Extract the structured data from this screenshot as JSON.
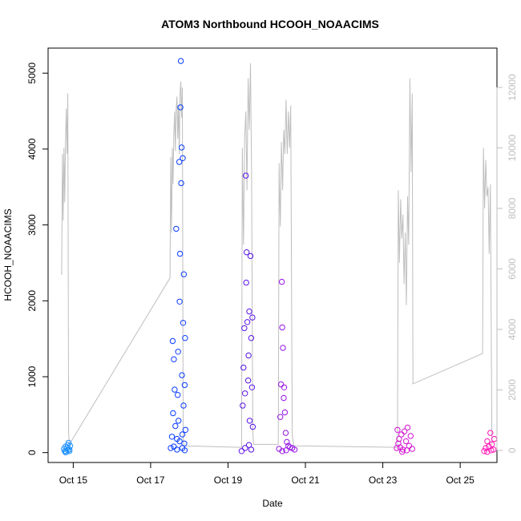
{
  "chart_data": {
    "type": "scatter",
    "title": "ATOM3 Northbound HCOOH_NOAACIMS",
    "xlabel": "Date",
    "ylabel": "HCOOH_NOAACIMS",
    "x_ticks": [
      "Oct 15",
      "Oct 17",
      "Oct 19",
      "Oct 21",
      "Oct 23",
      "Oct 25"
    ],
    "x_tick_days": [
      15,
      17,
      19,
      21,
      23,
      25
    ],
    "xlim": [
      14.35,
      25.95
    ],
    "ylim": [
      -130,
      5330
    ],
    "y_ticks": [
      0,
      1000,
      2000,
      3000,
      4000,
      5000
    ],
    "y2lim": [
      -400,
      13300
    ],
    "y2_ticks": [
      0,
      2000,
      4000,
      6000,
      8000,
      10000,
      12000
    ],
    "grid": false,
    "legend": "none",
    "colors": {
      "altitude_line": "#bebebe",
      "point_palette": [
        "#1e90ff",
        "#0a3cff",
        "#5a14e6",
        "#9614e6",
        "#d214d2",
        "#ff14b4"
      ]
    },
    "series": [
      {
        "role": "points",
        "flights": [
          {
            "day": 14.82,
            "points": [
              [
                14.76,
                50
              ],
              [
                14.78,
                20
              ],
              [
                14.8,
                80
              ],
              [
                14.82,
                10
              ],
              [
                14.84,
                60
              ],
              [
                14.86,
                30
              ],
              [
                14.88,
                130
              ],
              [
                14.9,
                40
              ],
              [
                14.92,
                90
              ],
              [
                14.8,
                5
              ],
              [
                14.86,
                100
              ],
              [
                14.9,
                20
              ]
            ]
          },
          {
            "day": 17.65,
            "points": [
              [
                17.52,
                60
              ],
              [
                17.55,
                210
              ],
              [
                17.57,
                1470
              ],
              [
                17.58,
                520
              ],
              [
                17.6,
                1230
              ],
              [
                17.62,
                830
              ],
              [
                17.64,
                350
              ],
              [
                17.66,
                2950
              ],
              [
                17.68,
                180
              ],
              [
                17.7,
                760
              ],
              [
                17.71,
                1330
              ],
              [
                17.72,
                420
              ],
              [
                17.74,
                3830
              ],
              [
                17.75,
                1990
              ],
              [
                17.76,
                2620
              ],
              [
                17.77,
                4550
              ],
              [
                17.78,
                5160
              ],
              [
                17.79,
                3550
              ],
              [
                17.8,
                4020
              ],
              [
                17.81,
                1020
              ],
              [
                17.82,
                240
              ],
              [
                17.83,
                3880
              ],
              [
                17.84,
                1710
              ],
              [
                17.85,
                620
              ],
              [
                17.86,
                2350
              ],
              [
                17.87,
                120
              ],
              [
                17.88,
                890
              ],
              [
                17.89,
                1510
              ],
              [
                17.9,
                300
              ],
              [
                17.6,
                80
              ],
              [
                17.68,
                40
              ],
              [
                17.75,
                150
              ],
              [
                17.82,
                60
              ],
              [
                17.88,
                30
              ]
            ]
          },
          {
            "day": 19.45,
            "points": [
              [
                19.35,
                20
              ],
              [
                19.38,
                620
              ],
              [
                19.4,
                1120
              ],
              [
                19.42,
                1640
              ],
              [
                19.44,
                780
              ],
              [
                19.46,
                3650
              ],
              [
                19.47,
                2240
              ],
              [
                19.48,
                2640
              ],
              [
                19.5,
                1720
              ],
              [
                19.52,
                950
              ],
              [
                19.53,
                1280
              ],
              [
                19.55,
                1860
              ],
              [
                19.56,
                420
              ],
              [
                19.58,
                2590
              ],
              [
                19.6,
                1510
              ],
              [
                19.62,
                860
              ],
              [
                19.63,
                1780
              ],
              [
                19.64,
                340
              ],
              [
                19.44,
                60
              ],
              [
                19.54,
                100
              ],
              [
                19.6,
                40
              ]
            ]
          },
          {
            "day": 20.5,
            "points": [
              [
                20.32,
                50
              ],
              [
                20.35,
                470
              ],
              [
                20.37,
                900
              ],
              [
                20.39,
                2250
              ],
              [
                20.4,
                1650
              ],
              [
                20.42,
                1380
              ],
              [
                20.44,
                720
              ],
              [
                20.45,
                860
              ],
              [
                20.47,
                530
              ],
              [
                20.49,
                260
              ],
              [
                20.52,
                140
              ],
              [
                20.56,
                90
              ],
              [
                20.6,
                70
              ],
              [
                20.66,
                60
              ],
              [
                20.72,
                40
              ],
              [
                20.4,
                20
              ],
              [
                20.5,
                30
              ]
            ]
          },
          {
            "day": 23.5,
            "points": [
              [
                23.36,
                60
              ],
              [
                23.38,
                300
              ],
              [
                23.4,
                120
              ],
              [
                23.42,
                180
              ],
              [
                23.45,
                70
              ],
              [
                23.48,
                240
              ],
              [
                23.52,
                40
              ],
              [
                23.56,
                280
              ],
              [
                23.6,
                150
              ],
              [
                23.64,
                330
              ],
              [
                23.68,
                90
              ],
              [
                23.72,
                220
              ],
              [
                23.76,
                50
              ],
              [
                23.5,
                10
              ],
              [
                23.62,
                30
              ]
            ]
          },
          {
            "day": 25.75,
            "points": [
              [
                25.62,
                20
              ],
              [
                25.66,
                60
              ],
              [
                25.7,
                150
              ],
              [
                25.74,
                80
              ],
              [
                25.78,
                260
              ],
              [
                25.82,
                110
              ],
              [
                25.86,
                40
              ],
              [
                25.88,
                180
              ],
              [
                25.7,
                10
              ],
              [
                25.8,
                30
              ]
            ]
          }
        ]
      },
      {
        "role": "altitude_line",
        "axis": "right",
        "points": [
          [
            14.7,
            5800
          ],
          [
            14.72,
            9800
          ],
          [
            14.74,
            7600
          ],
          [
            14.76,
            10000
          ],
          [
            14.78,
            8200
          ],
          [
            14.8,
            10200
          ],
          [
            14.82,
            11300
          ],
          [
            14.84,
            9800
          ],
          [
            14.86,
            11800
          ],
          [
            14.88,
            600
          ],
          [
            14.9,
            200
          ],
          [
            17.5,
            5700
          ],
          [
            17.52,
            9700
          ],
          [
            17.54,
            7200
          ],
          [
            17.56,
            10000
          ],
          [
            17.58,
            8800
          ],
          [
            17.6,
            10500
          ],
          [
            17.62,
            11200
          ],
          [
            17.64,
            9900
          ],
          [
            17.66,
            11300
          ],
          [
            17.68,
            11700
          ],
          [
            17.7,
            10300
          ],
          [
            17.72,
            11400
          ],
          [
            17.74,
            9800
          ],
          [
            17.76,
            11800
          ],
          [
            17.78,
            12200
          ],
          [
            17.8,
            11000
          ],
          [
            17.82,
            12000
          ],
          [
            17.84,
            400
          ],
          [
            17.86,
            150
          ],
          [
            19.35,
            100
          ],
          [
            19.37,
            10000
          ],
          [
            19.4,
            6800
          ],
          [
            19.43,
            10300
          ],
          [
            19.46,
            11200
          ],
          [
            19.49,
            8600
          ],
          [
            19.52,
            12300
          ],
          [
            19.55,
            10600
          ],
          [
            19.58,
            12800
          ],
          [
            19.61,
            9000
          ],
          [
            19.64,
            600
          ],
          [
            19.66,
            200
          ],
          [
            20.3,
            200
          ],
          [
            20.32,
            9500
          ],
          [
            20.35,
            7400
          ],
          [
            20.38,
            10200
          ],
          [
            20.41,
            8600
          ],
          [
            20.44,
            10600
          ],
          [
            20.47,
            9800
          ],
          [
            20.5,
            11600
          ],
          [
            20.53,
            9800
          ],
          [
            20.56,
            11200
          ],
          [
            20.59,
            10000
          ],
          [
            20.62,
            11400
          ],
          [
            20.66,
            500
          ],
          [
            20.7,
            150
          ],
          [
            23.38,
            100
          ],
          [
            23.4,
            8600
          ],
          [
            23.43,
            6200
          ],
          [
            23.46,
            8300
          ],
          [
            23.49,
            7000
          ],
          [
            23.52,
            7800
          ],
          [
            23.55,
            5500
          ],
          [
            23.58,
            7200
          ],
          [
            23.61,
            4800
          ],
          [
            23.64,
            8400
          ],
          [
            23.67,
            6800
          ],
          [
            23.7,
            12300
          ],
          [
            23.73,
            9200
          ],
          [
            23.76,
            11800
          ],
          [
            23.78,
            2200
          ],
          [
            25.58,
            3200
          ],
          [
            25.6,
            10000
          ],
          [
            25.63,
            8000
          ],
          [
            25.66,
            9600
          ],
          [
            25.69,
            8400
          ],
          [
            25.72,
            8700
          ],
          [
            25.75,
            6500
          ],
          [
            25.78,
            8800
          ],
          [
            25.82,
            200
          ]
        ]
      }
    ]
  }
}
